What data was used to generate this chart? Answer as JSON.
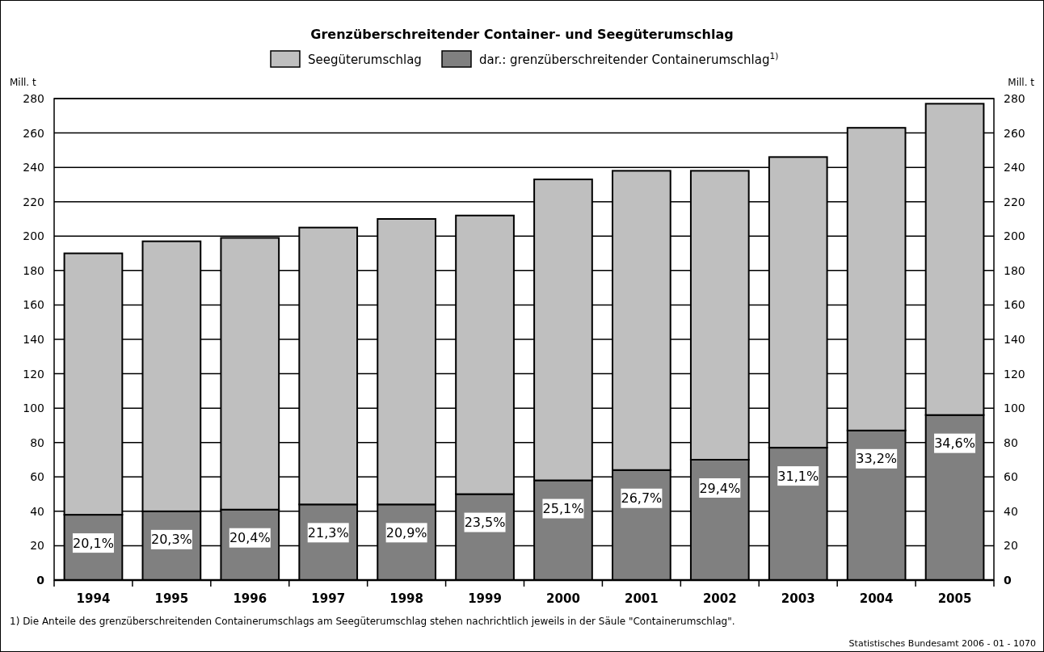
{
  "chart_data": {
    "type": "bar",
    "title": "Grenzüberschreitender Container- und Seegüterumschlag",
    "ylabel": "Mill. t",
    "y2label": "Mill. t",
    "categories": [
      "1994",
      "1995",
      "1996",
      "1997",
      "1998",
      "1999",
      "2000",
      "2001",
      "2002",
      "2003",
      "2004",
      "2005"
    ],
    "stacked": true,
    "series": [
      {
        "name": "dar.: grenzüberschreitender Containerumschlag$^{1)}$",
        "color": "#808080",
        "values": [
          38,
          40,
          41,
          44,
          44,
          50,
          58,
          64,
          70,
          77,
          87,
          96
        ]
      },
      {
        "name": "Seegüterumschlag",
        "color": "#bfbfbf",
        "values": [
          152,
          157,
          158,
          161,
          166,
          162,
          175,
          174,
          168,
          169,
          176,
          181
        ]
      }
    ],
    "ylim": [
      0,
      280
    ],
    "yticks": [
      0,
      20,
      40,
      60,
      80,
      100,
      120,
      140,
      160,
      180,
      200,
      220,
      240,
      260,
      280
    ],
    "y2lim": [
      0,
      280
    ],
    "y2ticks": [
      0,
      20,
      40,
      60,
      80,
      100,
      120,
      140,
      160,
      180,
      200,
      220,
      240,
      260,
      280
    ],
    "grid": "y",
    "legend": "top",
    "annotations": [
      {
        "text": "20,1%",
        "x": "1994",
        "y": 38
      },
      {
        "text": "20,3%",
        "x": "1995",
        "y": 40
      },
      {
        "text": "20,4%",
        "x": "1996",
        "y": 41
      },
      {
        "text": "21,3%",
        "x": "1997",
        "y": 44
      },
      {
        "text": "20,9%",
        "x": "1998",
        "y": 44
      },
      {
        "text": "23,5%",
        "x": "1999",
        "y": 50
      },
      {
        "text": "25,1%",
        "x": "2000",
        "y": 58
      },
      {
        "text": "26,7%",
        "x": "2001",
        "y": 64
      },
      {
        "text": "29,4%",
        "x": "2002",
        "y": 70
      },
      {
        "text": "31,1%",
        "x": "2003",
        "y": 77
      },
      {
        "text": "33,2%",
        "x": "2004",
        "y": 87
      },
      {
        "text": "34,6%",
        "x": "2005",
        "y": 96
      },
      "1) Die Anteile des grenzüberschreitenden Containerumschlags am Seegüterumschlag stehen nachrichtlich jeweils in der Säule \"Containerumschlag\".",
      "Statistisches Bundesamt 2006 - 01 - 1070"
    ]
  }
}
